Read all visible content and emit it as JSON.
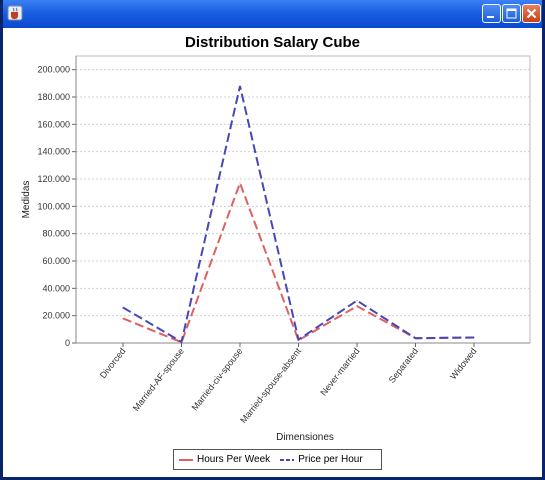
{
  "colors": {
    "hours": "#e06060",
    "price": "#4747b8"
  },
  "window": {
    "icons": {
      "app": "java-cup-icon",
      "minimize": "minimize-icon",
      "maximize": "maximize-icon",
      "close": "close-icon"
    }
  },
  "chart_data": {
    "type": "line",
    "title": "Distribution Salary Cube",
    "xlabel": "Dimensiones",
    "ylabel": "Medidas",
    "categories": [
      "Divorced",
      "Married-AF-spouse",
      "Married-civ-spouse",
      "Married-spouse-absent",
      "Never-married",
      "Separated",
      "Widowed"
    ],
    "ylim": [
      0,
      210000
    ],
    "yticks": [
      0,
      20000,
      40000,
      60000,
      80000,
      100000,
      120000,
      140000,
      160000,
      180000,
      200000
    ],
    "ytick_labels": [
      "0",
      "20.000",
      "40.000",
      "60.000",
      "80.000",
      "100.000",
      "120.000",
      "140.000",
      "160.000",
      "180.000",
      "200.000"
    ],
    "grid": true,
    "legend_position": "bottom",
    "series": [
      {
        "name": "Hours Per Week",
        "values": [
          18000,
          500,
          117000,
          2000,
          27000,
          3500,
          4000
        ]
      },
      {
        "name": "Price per Hour",
        "values": [
          26000,
          800,
          188000,
          2500,
          31000,
          3500,
          4000
        ]
      }
    ]
  }
}
